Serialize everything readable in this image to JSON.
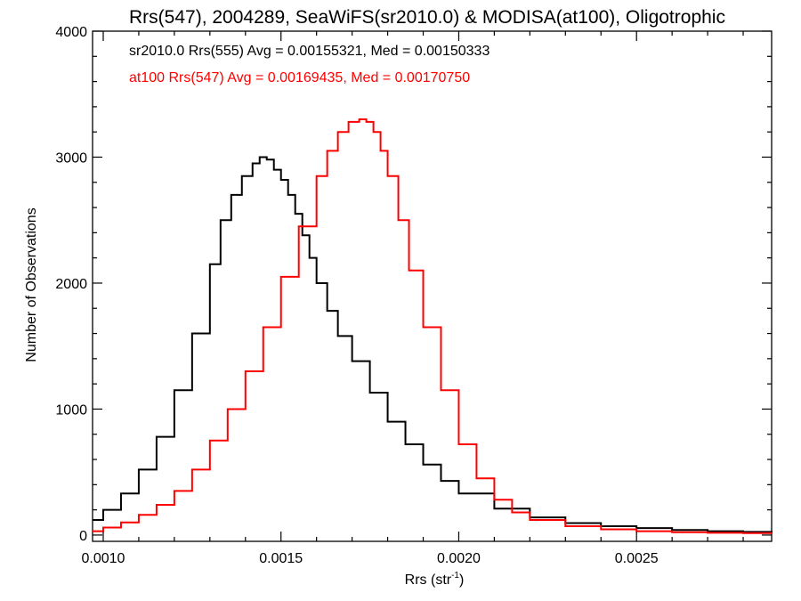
{
  "chart_data": {
    "type": "line",
    "title": "Rrs(547), 2004289, SeaWiFS(sr2010.0) & MODISA(at100), Oligotrophic",
    "xlabel_main": "Rrs (str",
    "xlabel_sup": "-1",
    "xlabel_tail": ")",
    "ylabel": "Number of Observations",
    "xlim": [
      0.00097,
      0.00288
    ],
    "ylim": [
      -50,
      4000
    ],
    "x_ticks": [
      0.001,
      0.0015,
      0.002,
      0.0025
    ],
    "x_tick_labels": [
      "0.0010",
      "0.0015",
      "0.0020",
      "0.0025"
    ],
    "y_ticks": [
      0,
      1000,
      2000,
      3000,
      4000
    ],
    "y_tick_labels": [
      "0",
      "1000",
      "2000",
      "3000",
      "4000"
    ],
    "grid": false,
    "annotations": [
      {
        "text": "sr2010.0 Rrs(555) Avg = 0.00155321, Med = 0.00150333",
        "color": "#000000"
      },
      {
        "text": "at100 Rrs(547) Avg = 0.00169435, Med = 0.00170750",
        "color": "#ff0000"
      }
    ],
    "series": [
      {
        "color": "#000000",
        "x": [
          0.00097,
          0.001,
          0.00105,
          0.0011,
          0.00115,
          0.0012,
          0.00125,
          0.0013,
          0.00133,
          0.00136,
          0.00139,
          0.00142,
          0.00144,
          0.00146,
          0.00148,
          0.0015,
          0.00152,
          0.00154,
          0.00156,
          0.00158,
          0.0016,
          0.00163,
          0.00166,
          0.0017,
          0.00175,
          0.0018,
          0.00185,
          0.0019,
          0.00195,
          0.002,
          0.0021,
          0.0022,
          0.0023,
          0.0024,
          0.0025,
          0.0026,
          0.0027,
          0.0028,
          0.00288
        ],
        "y": [
          120,
          200,
          330,
          520,
          780,
          1150,
          1600,
          2150,
          2500,
          2700,
          2850,
          2950,
          3000,
          2980,
          2900,
          2820,
          2700,
          2550,
          2380,
          2200,
          2000,
          1780,
          1580,
          1380,
          1130,
          900,
          720,
          560,
          430,
          330,
          210,
          140,
          95,
          70,
          55,
          40,
          30,
          25,
          20
        ]
      },
      {
        "color": "#ff0000",
        "x": [
          0.00097,
          0.001,
          0.00105,
          0.0011,
          0.00115,
          0.0012,
          0.00125,
          0.0013,
          0.00135,
          0.0014,
          0.00145,
          0.0015,
          0.00155,
          0.0016,
          0.00163,
          0.00166,
          0.00169,
          0.00172,
          0.00174,
          0.00176,
          0.00178,
          0.0018,
          0.00183,
          0.00186,
          0.0019,
          0.00195,
          0.002,
          0.00205,
          0.0021,
          0.00215,
          0.0022,
          0.0023,
          0.0024,
          0.0025,
          0.0026,
          0.0027,
          0.0028,
          0.00288
        ],
        "y": [
          30,
          60,
          100,
          160,
          240,
          350,
          520,
          750,
          1000,
          1300,
          1650,
          2050,
          2450,
          2850,
          3050,
          3200,
          3280,
          3300,
          3280,
          3200,
          3050,
          2850,
          2500,
          2100,
          1650,
          1150,
          720,
          450,
          280,
          180,
          120,
          70,
          45,
          30,
          22,
          18,
          15,
          12
        ]
      }
    ]
  }
}
